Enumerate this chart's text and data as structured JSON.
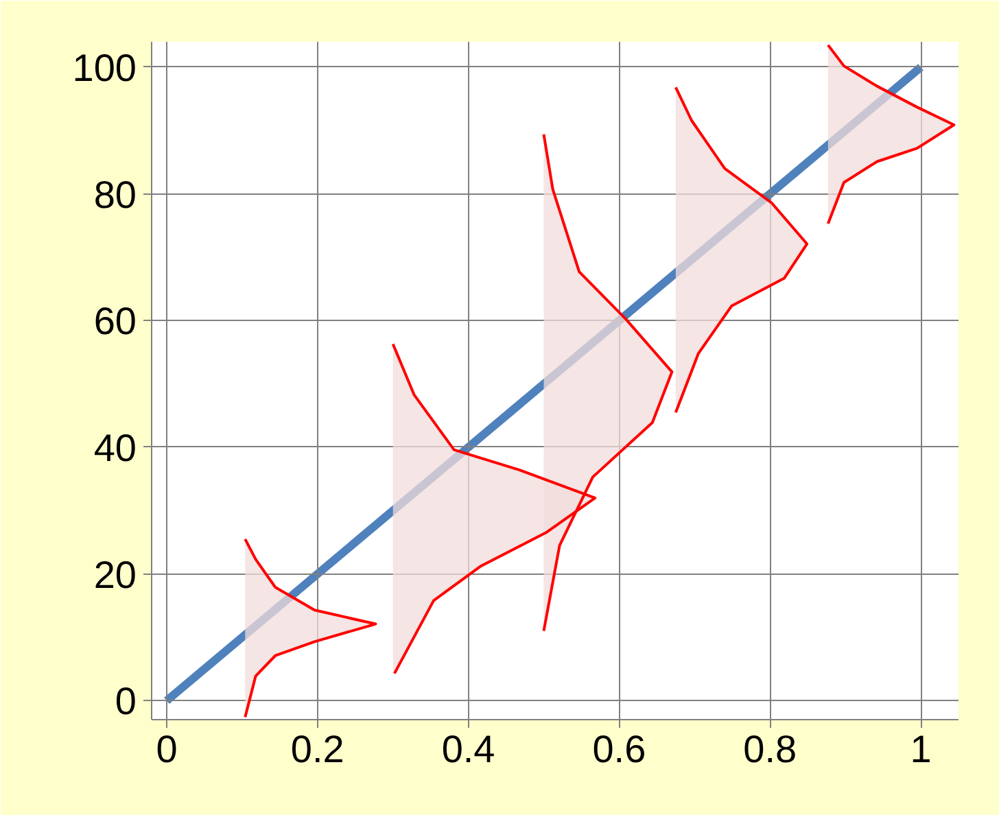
{
  "chart_data": {
    "type": "line",
    "xlim": [
      -0.02,
      1.05
    ],
    "ylim": [
      -3,
      104
    ],
    "xticks": [
      0,
      0.2,
      0.4,
      0.6,
      0.8,
      1
    ],
    "yticks": [
      0,
      20,
      40,
      60,
      80,
      100
    ],
    "grid": true,
    "marker": "none",
    "line_style": "solid",
    "series": [
      {
        "color": "#4f81bd",
        "x": [
          0,
          1
        ],
        "values": [
          0,
          100
        ]
      },
      {
        "color": "#ff0000",
        "x": [
          0.104,
          0.118,
          0.144,
          0.196,
          0.277,
          0.196,
          0.144,
          0.118,
          0.104
        ],
        "values": [
          25.5,
          22.3,
          17.9,
          14.3,
          12.1,
          9.3,
          7.1,
          3.9,
          -2.6
        ]
      },
      {
        "color": "#ff0000",
        "x": [
          0.3,
          0.328,
          0.381,
          0.468,
          0.568,
          0.504,
          0.416,
          0.354,
          0.302
        ],
        "values": [
          56.3,
          48.3,
          39.6,
          36.4,
          32.0,
          26.6,
          21.2,
          15.8,
          4.3
        ]
      },
      {
        "color": "#ff0000",
        "x": [
          0.5,
          0.512,
          0.547,
          0.609,
          0.67,
          0.644,
          0.565,
          0.521,
          0.5
        ],
        "values": [
          89.4,
          80.7,
          67.7,
          60.2,
          51.9,
          43.9,
          35.3,
          24.5,
          11.0
        ]
      },
      {
        "color": "#ff0000",
        "x": [
          0.675,
          0.696,
          0.74,
          0.802,
          0.849,
          0.819,
          0.749,
          0.705,
          0.675
        ],
        "values": [
          96.8,
          91.6,
          84.0,
          78.6,
          72.1,
          66.7,
          62.3,
          54.8,
          45.5
        ]
      },
      {
        "color": "#ff0000",
        "x": [
          0.877,
          0.898,
          0.942,
          0.995,
          1.044,
          0.995,
          0.942,
          0.898,
          0.877
        ],
        "values": [
          103.5,
          100.2,
          97.0,
          93.7,
          90.9,
          87.2,
          85.1,
          81.8,
          75.3
        ]
      }
    ]
  }
}
